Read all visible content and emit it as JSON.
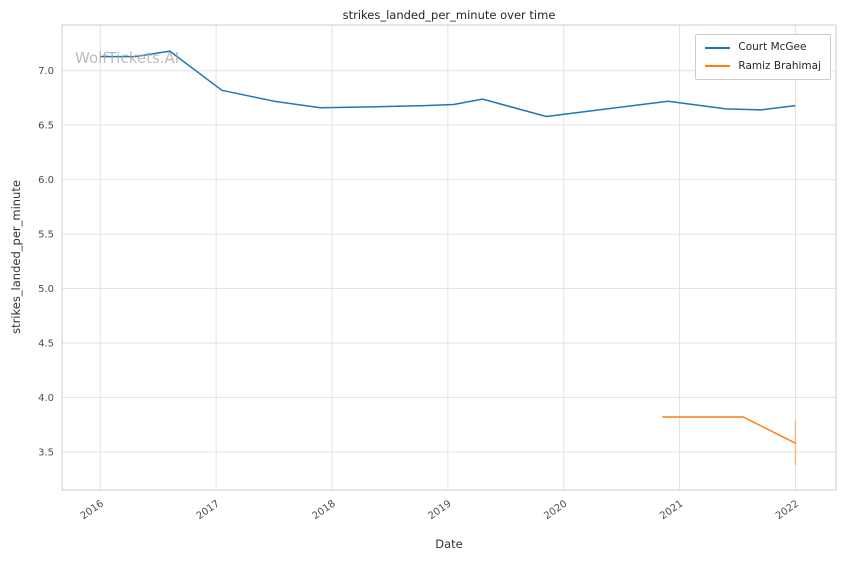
{
  "chart_data": {
    "type": "line",
    "title": "strikes_landed_per_minute over time",
    "xlabel": "Date",
    "ylabel": "strikes_landed_per_minute",
    "watermark": "WolfTickets.AI",
    "xlim": [
      2015.67,
      2022.35
    ],
    "ylim": [
      3.15,
      7.42
    ],
    "x_ticks": [
      2016,
      2017,
      2018,
      2019,
      2020,
      2021,
      2022
    ],
    "y_ticks": [
      3.5,
      4.0,
      4.5,
      5.0,
      5.5,
      6.0,
      6.5,
      7.0
    ],
    "grid": true,
    "legend_position": "upper right",
    "series": [
      {
        "name": "Court McGee",
        "color": "#1f77b4",
        "x": [
          2016.0,
          2016.3,
          2016.6,
          2017.05,
          2017.5,
          2017.9,
          2018.4,
          2018.8,
          2019.05,
          2019.3,
          2019.85,
          2020.15,
          2020.9,
          2021.4,
          2021.7,
          2022.0
        ],
        "y": [
          7.13,
          7.13,
          7.18,
          6.82,
          6.72,
          6.66,
          6.67,
          6.68,
          6.69,
          6.74,
          6.58,
          6.62,
          6.72,
          6.65,
          6.64,
          6.68
        ]
      },
      {
        "name": "Ramiz Brahimaj",
        "color": "#ff7f0e",
        "x": [
          2020.85,
          2021.55,
          2022.0
        ],
        "y": [
          3.82,
          3.82,
          3.58
        ]
      }
    ],
    "error_bars": [
      {
        "series": "Ramiz Brahimaj",
        "x": 2022.0,
        "y_min": 3.38,
        "y_max": 3.79,
        "color": "rgba(255,127,14,0.45)"
      }
    ]
  },
  "style": {
    "grid_color": "#e2e2e2",
    "spine_color": "#cccccc",
    "tick_text_color": "#4d4d4d"
  }
}
